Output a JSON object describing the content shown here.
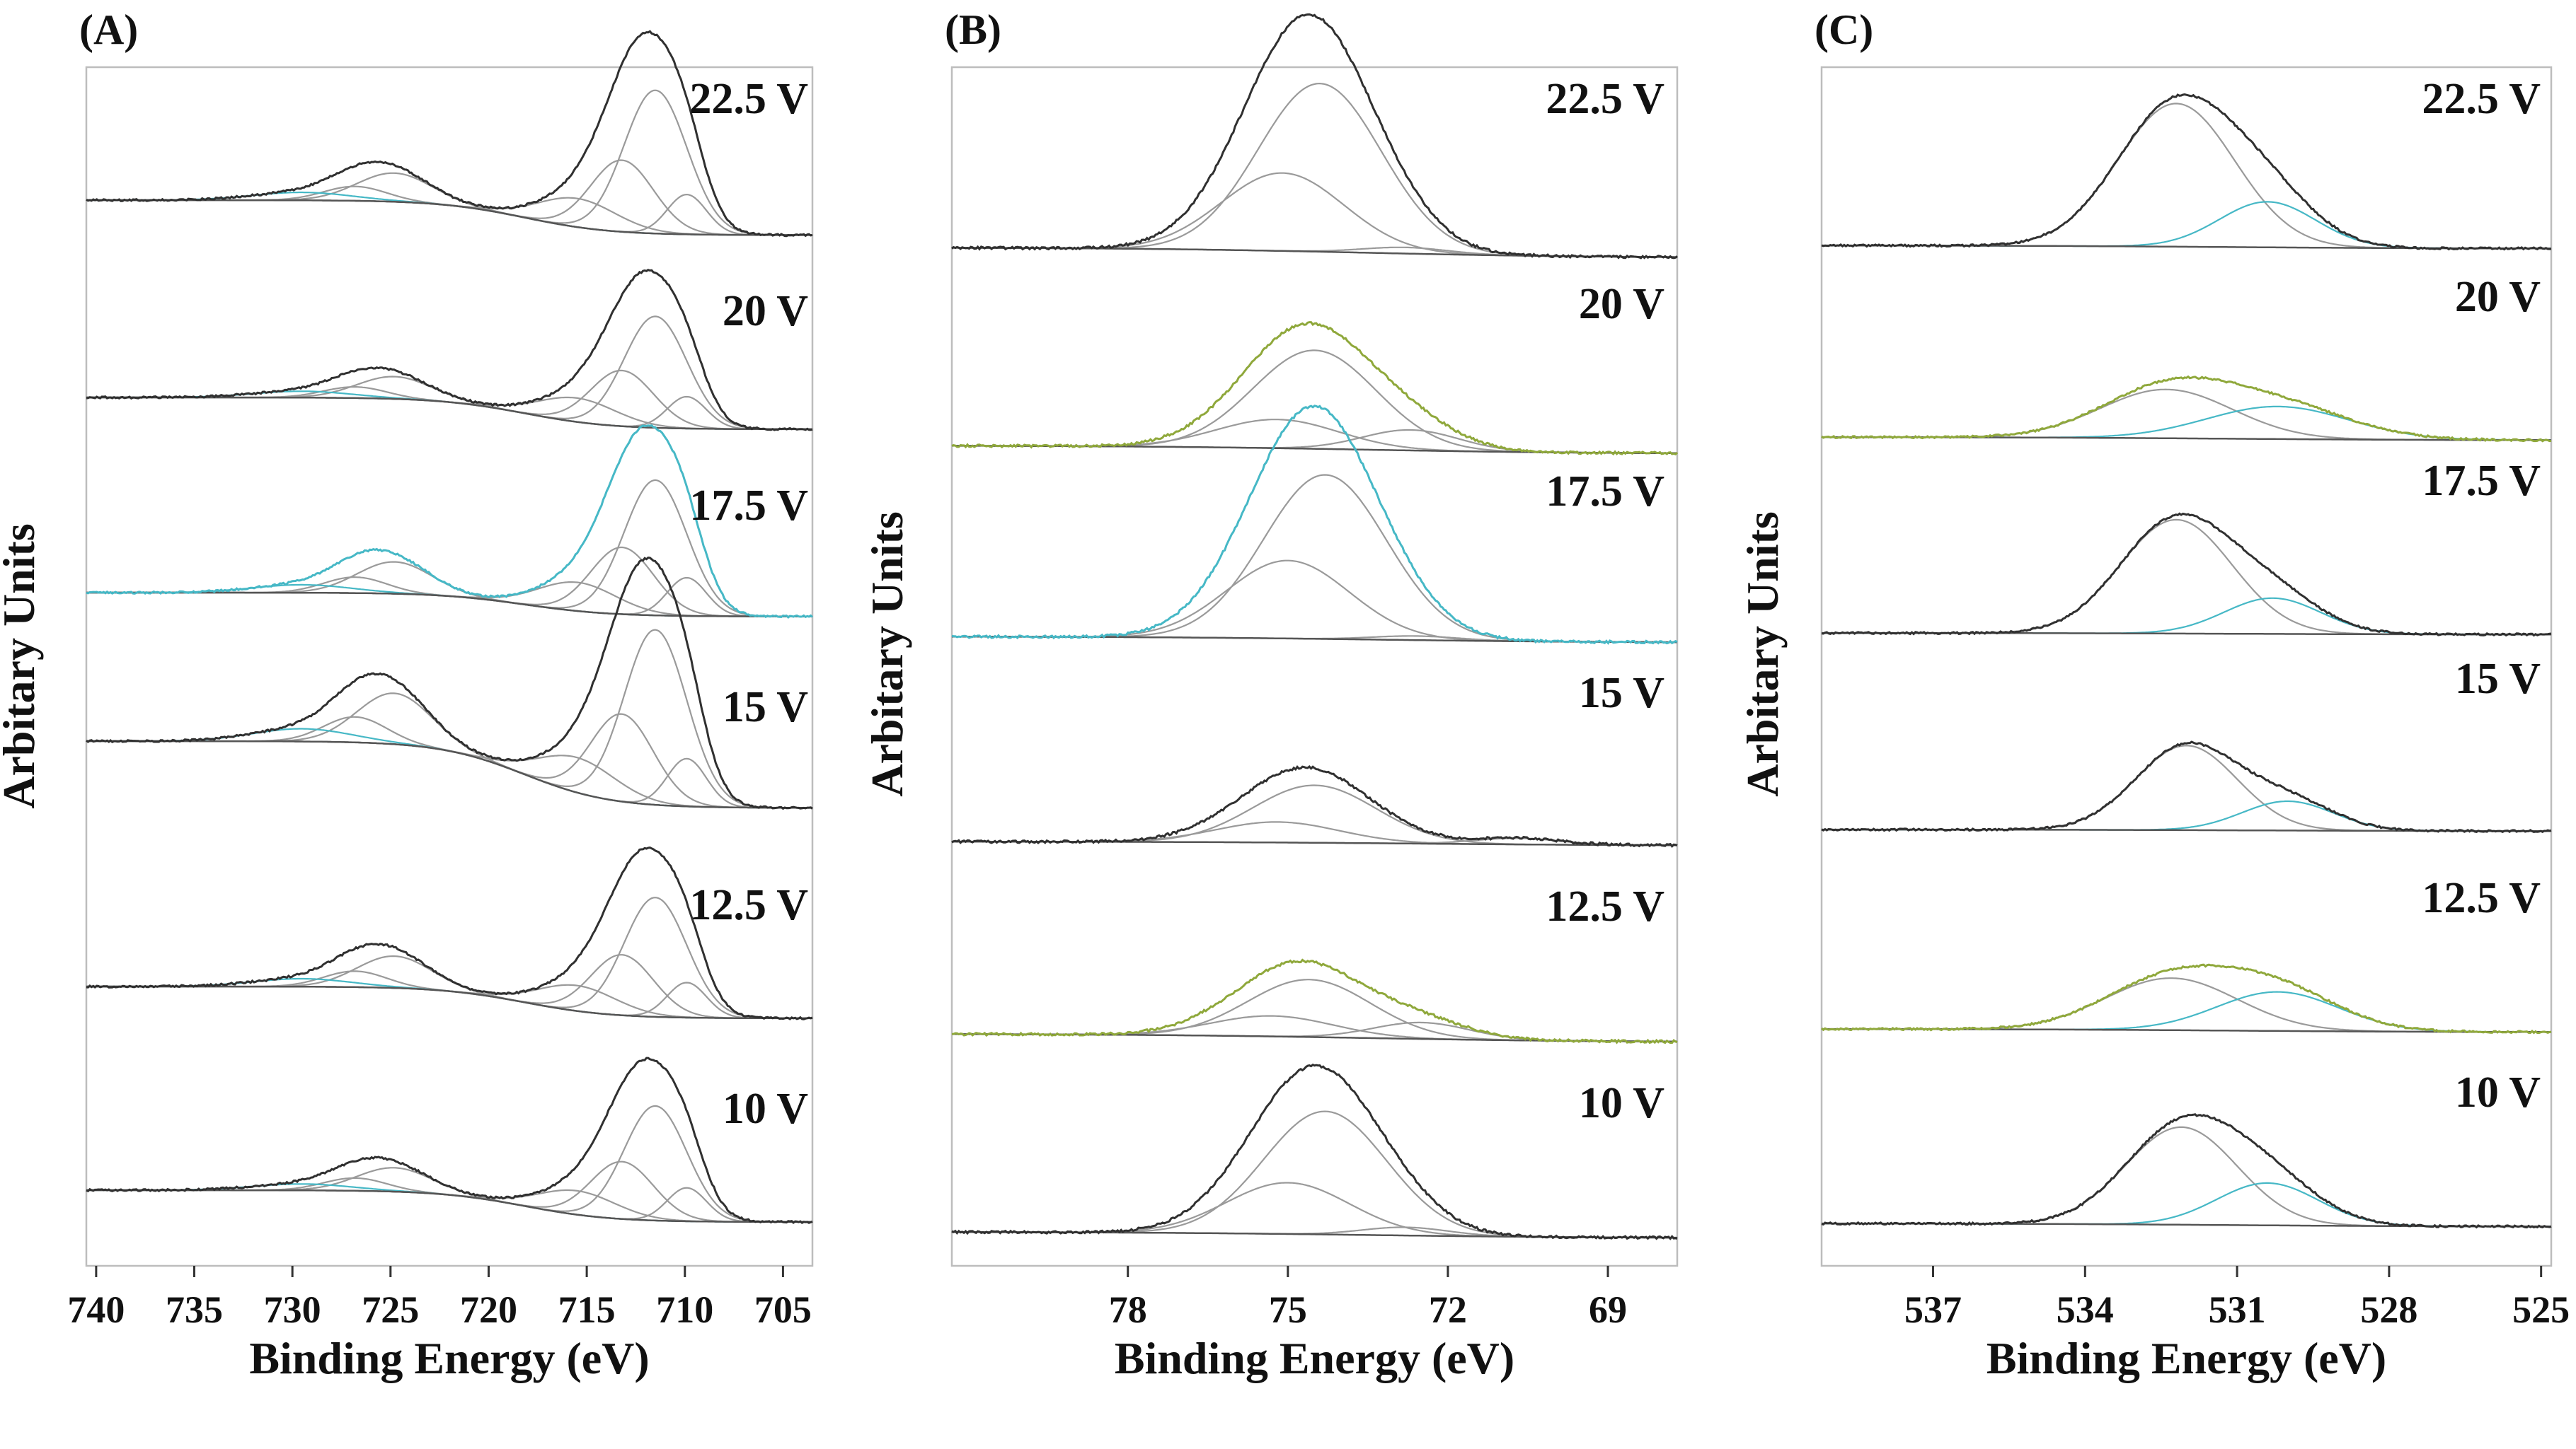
{
  "figure": {
    "ylabel": "Arbitary Units",
    "xlabel": "Binding Energy (eV)"
  },
  "chart_data": [
    {
      "panel": "(A)",
      "type": "line",
      "title": "",
      "xlabel": "Binding Energy (eV)",
      "ylabel": "Arbitary Units",
      "xlim": [
        740.5,
        703.5
      ],
      "ticks": [
        740,
        735,
        730,
        725,
        720,
        715,
        710,
        705
      ],
      "grid": false,
      "series": [
        {
          "name": "22.5 V",
          "baseline_high": 0.0,
          "baseline_low": -0.22,
          "peaks": [
            {
              "center": 724.8,
              "height": 0.18,
              "width": 1.9
            },
            {
              "center": 726.8,
              "height": 0.09,
              "width": 1.6
            },
            {
              "center": 729.5,
              "height": 0.05,
              "width": 2.5
            },
            {
              "center": 711.5,
              "height": 0.9,
              "width": 1.6
            },
            {
              "center": 713.2,
              "height": 0.45,
              "width": 1.6
            },
            {
              "center": 715.5,
              "height": 0.18,
              "width": 2.0
            },
            {
              "center": 709.9,
              "height": 0.25,
              "width": 1.0
            }
          ]
        },
        {
          "name": "20 V",
          "baseline_high": 0.0,
          "baseline_low": -0.2,
          "peaks": [
            {
              "center": 724.8,
              "height": 0.14,
              "width": 1.9
            },
            {
              "center": 726.8,
              "height": 0.07,
              "width": 1.6
            },
            {
              "center": 729.5,
              "height": 0.04,
              "width": 2.5
            },
            {
              "center": 711.5,
              "height": 0.7,
              "width": 1.6
            },
            {
              "center": 713.2,
              "height": 0.35,
              "width": 1.6
            },
            {
              "center": 715.5,
              "height": 0.15,
              "width": 2.0
            },
            {
              "center": 709.9,
              "height": 0.2,
              "width": 1.0
            }
          ]
        },
        {
          "name": "17.5 V",
          "baseline_high": 0.0,
          "baseline_low": -0.15,
          "peaks": [
            {
              "center": 724.8,
              "height": 0.2,
              "width": 1.9
            },
            {
              "center": 726.8,
              "height": 0.1,
              "width": 1.6
            },
            {
              "center": 729.5,
              "height": 0.05,
              "width": 2.5
            },
            {
              "center": 711.5,
              "height": 0.85,
              "width": 1.6
            },
            {
              "center": 713.2,
              "height": 0.42,
              "width": 1.6
            },
            {
              "center": 715.5,
              "height": 0.18,
              "width": 2.0
            },
            {
              "center": 709.9,
              "height": 0.24,
              "width": 1.0
            }
          ]
        },
        {
          "name": "15 V",
          "baseline_high": 0.0,
          "baseline_low": -0.42,
          "peaks": [
            {
              "center": 724.8,
              "height": 0.32,
              "width": 1.9
            },
            {
              "center": 726.8,
              "height": 0.16,
              "width": 1.6
            },
            {
              "center": 729.5,
              "height": 0.08,
              "width": 2.5
            },
            {
              "center": 711.5,
              "height": 1.1,
              "width": 1.6
            },
            {
              "center": 713.2,
              "height": 0.55,
              "width": 1.6
            },
            {
              "center": 715.5,
              "height": 0.22,
              "width": 2.0
            },
            {
              "center": 709.9,
              "height": 0.3,
              "width": 1.0
            }
          ]
        },
        {
          "name": "12.5 V",
          "baseline_high": 0.0,
          "baseline_low": -0.2,
          "peaks": [
            {
              "center": 724.8,
              "height": 0.2,
              "width": 1.9
            },
            {
              "center": 726.8,
              "height": 0.1,
              "width": 1.6
            },
            {
              "center": 729.5,
              "height": 0.05,
              "width": 2.5
            },
            {
              "center": 711.5,
              "height": 0.75,
              "width": 1.6
            },
            {
              "center": 713.2,
              "height": 0.38,
              "width": 1.6
            },
            {
              "center": 715.5,
              "height": 0.16,
              "width": 2.0
            },
            {
              "center": 709.9,
              "height": 0.22,
              "width": 1.0
            }
          ]
        },
        {
          "name": "10 V",
          "baseline_high": 0.0,
          "baseline_low": -0.2,
          "peaks": [
            {
              "center": 724.8,
              "height": 0.15,
              "width": 1.9
            },
            {
              "center": 726.8,
              "height": 0.08,
              "width": 1.6
            },
            {
              "center": 729.5,
              "height": 0.04,
              "width": 2.5
            },
            {
              "center": 711.5,
              "height": 0.72,
              "width": 1.6
            },
            {
              "center": 713.2,
              "height": 0.36,
              "width": 1.6
            },
            {
              "center": 715.5,
              "height": 0.15,
              "width": 2.0
            },
            {
              "center": 709.9,
              "height": 0.21,
              "width": 1.0
            }
          ]
        }
      ]
    },
    {
      "panel": "(B)",
      "type": "line",
      "title": "",
      "xlabel": "Binding Energy (eV)",
      "ylabel": "Arbitary Units",
      "xlim": [
        81.3,
        67.7
      ],
      "ticks": [
        78,
        75,
        72,
        69
      ],
      "grid": false,
      "series": [
        {
          "name": "22.5 V",
          "baseline_high": 0.0,
          "baseline_low": -0.05,
          "peaks": [
            {
              "center": 74.4,
              "height": 0.82,
              "width": 1.15
            },
            {
              "center": 75.1,
              "height": 0.38,
              "width": 1.15
            },
            {
              "center": 72.8,
              "height": 0.03,
              "width": 0.8
            }
          ]
        },
        {
          "name": "20 V",
          "baseline_high": 0.0,
          "baseline_low": -0.04,
          "peaks": [
            {
              "center": 74.5,
              "height": 0.48,
              "width": 1.15
            },
            {
              "center": 75.2,
              "height": 0.14,
              "width": 1.15
            },
            {
              "center": 72.7,
              "height": 0.1,
              "width": 0.9
            }
          ]
        },
        {
          "name": "17.5 V",
          "baseline_high": 0.0,
          "baseline_low": -0.03,
          "peaks": [
            {
              "center": 74.3,
              "height": 0.8,
              "width": 1.15
            },
            {
              "center": 75.0,
              "height": 0.38,
              "width": 1.15
            },
            {
              "center": 72.6,
              "height": 0.02,
              "width": 0.8
            }
          ]
        },
        {
          "name": "15 V",
          "baseline_high": 0.0,
          "baseline_low": -0.02,
          "peaks": [
            {
              "center": 74.5,
              "height": 0.28,
              "width": 1.15
            },
            {
              "center": 75.2,
              "height": 0.1,
              "width": 1.15
            },
            {
              "center": 70.7,
              "height": 0.03,
              "width": 0.8
            }
          ]
        },
        {
          "name": "12.5 V",
          "baseline_high": 0.0,
          "baseline_low": -0.04,
          "peaks": [
            {
              "center": 74.6,
              "height": 0.28,
              "width": 1.15
            },
            {
              "center": 75.3,
              "height": 0.1,
              "width": 1.15
            },
            {
              "center": 72.5,
              "height": 0.08,
              "width": 0.9
            }
          ]
        },
        {
          "name": "10 V",
          "baseline_high": 0.0,
          "baseline_low": -0.03,
          "peaks": [
            {
              "center": 74.3,
              "height": 0.6,
              "width": 1.15
            },
            {
              "center": 75.0,
              "height": 0.25,
              "width": 1.15
            },
            {
              "center": 72.8,
              "height": 0.04,
              "width": 0.8
            }
          ]
        }
      ]
    },
    {
      "panel": "(C)",
      "type": "line",
      "title": "",
      "xlabel": "Binding Energy (eV)",
      "ylabel": "Arbitary Units",
      "xlim": [
        539.2,
        524.8
      ],
      "ticks": [
        537,
        534,
        531,
        528,
        525
      ],
      "grid": false,
      "series": [
        {
          "name": "22.5 V",
          "baseline_high": 0.0,
          "baseline_low": -0.02,
          "peaks": [
            {
              "center": 532.2,
              "height": 0.88,
              "width": 1.15
            },
            {
              "center": 530.4,
              "height": 0.28,
              "width": 0.95
            }
          ]
        },
        {
          "name": "20 V",
          "baseline_high": 0.0,
          "baseline_low": -0.02,
          "peaks": [
            {
              "center": 532.4,
              "height": 0.3,
              "width": 1.3
            },
            {
              "center": 530.2,
              "height": 0.2,
              "width": 1.4
            }
          ]
        },
        {
          "name": "17.5 V",
          "baseline_high": 0.0,
          "baseline_low": -0.01,
          "peaks": [
            {
              "center": 532.2,
              "height": 0.7,
              "width": 1.1
            },
            {
              "center": 530.3,
              "height": 0.22,
              "width": 0.95
            }
          ]
        },
        {
          "name": "15 V",
          "baseline_high": 0.0,
          "baseline_low": -0.01,
          "peaks": [
            {
              "center": 532.0,
              "height": 0.52,
              "width": 1.0
            },
            {
              "center": 530.0,
              "height": 0.18,
              "width": 0.9
            }
          ]
        },
        {
          "name": "12.5 V",
          "baseline_high": 0.0,
          "baseline_low": -0.02,
          "peaks": [
            {
              "center": 532.3,
              "height": 0.32,
              "width": 1.3
            },
            {
              "center": 530.2,
              "height": 0.24,
              "width": 1.2
            }
          ]
        },
        {
          "name": "10 V",
          "baseline_high": 0.0,
          "baseline_low": -0.02,
          "peaks": [
            {
              "center": 532.1,
              "height": 0.6,
              "width": 1.1
            },
            {
              "center": 530.4,
              "height": 0.26,
              "width": 1.0
            }
          ]
        }
      ]
    }
  ]
}
